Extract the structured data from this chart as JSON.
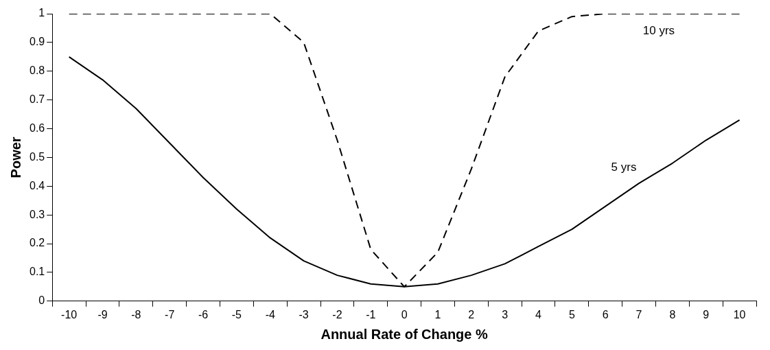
{
  "chart_data": {
    "type": "line",
    "xlabel": "Annual Rate of Change %",
    "ylabel": "Power",
    "categories": [
      "-10",
      "-9",
      "-8",
      "-7",
      "-6",
      "-5",
      "-4",
      "-3",
      "-2",
      "-1",
      "0",
      "1",
      "2",
      "3",
      "4",
      "5",
      "6",
      "7",
      "8",
      "9",
      "10"
    ],
    "ylim": [
      0,
      1
    ],
    "yticks": [
      0,
      0.1,
      0.2,
      0.3,
      0.4,
      0.5,
      0.6,
      0.7,
      0.8,
      0.9,
      1
    ],
    "grid": false,
    "legend": false,
    "marker": "none",
    "series": [
      {
        "name": "5 yrs",
        "color": "#000000",
        "line_style": "solid",
        "values": [
          0.85,
          0.77,
          0.67,
          0.55,
          0.43,
          0.32,
          0.22,
          0.14,
          0.09,
          0.06,
          0.05,
          0.06,
          0.09,
          0.13,
          0.19,
          0.25,
          0.33,
          0.41,
          0.48,
          0.56,
          0.63
        ]
      },
      {
        "name": "10 yrs",
        "color": "#000000",
        "line_style": "dashed",
        "values": [
          1,
          1,
          1,
          1,
          1,
          1,
          1,
          0.9,
          0.56,
          0.18,
          0.05,
          0.17,
          0.46,
          0.78,
          0.94,
          0.99,
          1,
          1,
          1,
          1,
          1
        ]
      }
    ]
  }
}
